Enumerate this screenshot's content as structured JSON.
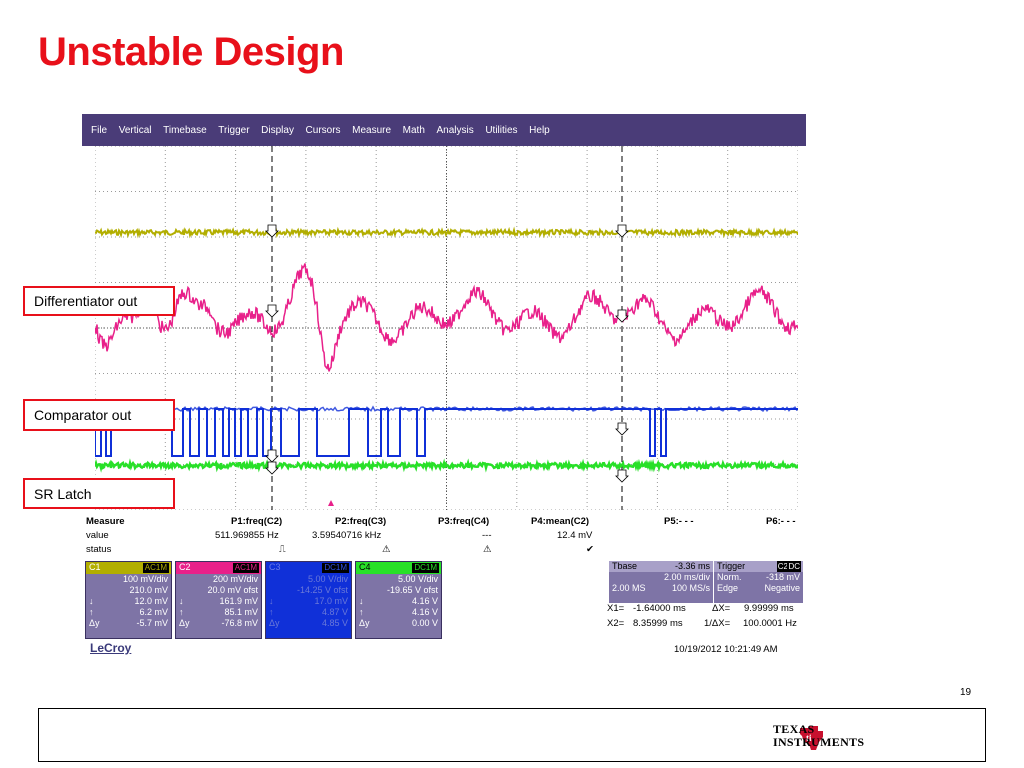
{
  "slide": {
    "title": "Unstable Design",
    "page_number": "19",
    "logo_text": [
      "Texas",
      "Instruments"
    ]
  },
  "callouts": [
    {
      "label": "Differentiator out"
    },
    {
      "label": "Comparator out"
    },
    {
      "label": "SR Latch"
    }
  ],
  "scope": {
    "menu": [
      "File",
      "Vertical",
      "Timebase",
      "Trigger",
      "Display",
      "Cursors",
      "Measure",
      "Math",
      "Analysis",
      "Utilities",
      "Help"
    ],
    "channel_markers": [
      "C1",
      "C2",
      "C3",
      "C4"
    ],
    "colors": {
      "C1": "#b2ae00",
      "C2": "#e8208a",
      "C3": "#1030d8",
      "C4": "#28e028",
      "menubar": "#4a3c78"
    },
    "measure": {
      "headers": [
        "Measure",
        "P1:freq(C2)",
        "P2:freq(C3)",
        "P3:freq(C4)",
        "P4:mean(C2)",
        "P5:- - -",
        "P6:- - -"
      ],
      "value": [
        "value",
        "511.969855 Hz",
        "3.59540716 kHz",
        "---",
        "12.4 mV",
        "",
        ""
      ],
      "status": [
        "status",
        "⎍",
        "⚠",
        "⚠",
        "✔",
        "",
        ""
      ]
    },
    "channels": [
      {
        "name": "C1",
        "coupling": "AC1M",
        "rows": [
          [
            "",
            "100 mV/div"
          ],
          [
            "",
            "210.0 mV"
          ],
          [
            "↓",
            "12.0 mV"
          ],
          [
            "↑",
            "6.2 mV"
          ],
          [
            "Δy",
            "-5.7 mV"
          ]
        ]
      },
      {
        "name": "C2",
        "coupling": "AC1M",
        "rows": [
          [
            "",
            "200 mV/div"
          ],
          [
            "",
            "20.0 mV ofst"
          ],
          [
            "↓",
            "161.9 mV"
          ],
          [
            "↑",
            "85.1 mV"
          ],
          [
            "Δy",
            "-76.8 mV"
          ]
        ]
      },
      {
        "name": "C3",
        "coupling": "DC1M",
        "rows": [
          [
            "",
            "5.00 V/div"
          ],
          [
            "",
            "-14.25 V ofst"
          ],
          [
            "↓",
            "17.0 mV"
          ],
          [
            "↑",
            "4.87 V"
          ],
          [
            "Δy",
            "4.85 V"
          ]
        ]
      },
      {
        "name": "C4",
        "coupling": "DC1M",
        "rows": [
          [
            "",
            "5.00 V/div"
          ],
          [
            "",
            "-19.65 V ofst"
          ],
          [
            "↓",
            "4.16 V"
          ],
          [
            "↑",
            "4.16 V"
          ],
          [
            "Δy",
            "0.00 V"
          ]
        ]
      }
    ],
    "timebase": {
      "label": "Tbase",
      "delay": "-3.36 ms",
      "div": "2.00 ms/div",
      "samples": "2.00 MS",
      "rate": "100 MS/s"
    },
    "trigger": {
      "label": "Trigger",
      "src": "C2",
      "coupling": "DC",
      "mode": "Norm.",
      "level": "-318 mV",
      "type": "Edge",
      "slope": "Negative"
    },
    "cursors": {
      "x1_label": "X1=",
      "x1": "-1.64000 ms",
      "dx_label": "ΔX=",
      "dx": "9.99999 ms",
      "x2_label": "X2=",
      "x2": "8.35999 ms",
      "inv_label": "1/ΔX=",
      "inv": "100.0001 Hz"
    },
    "brand": "LeCroy",
    "timestamp": "10/19/2012 10:21:49 AM"
  }
}
